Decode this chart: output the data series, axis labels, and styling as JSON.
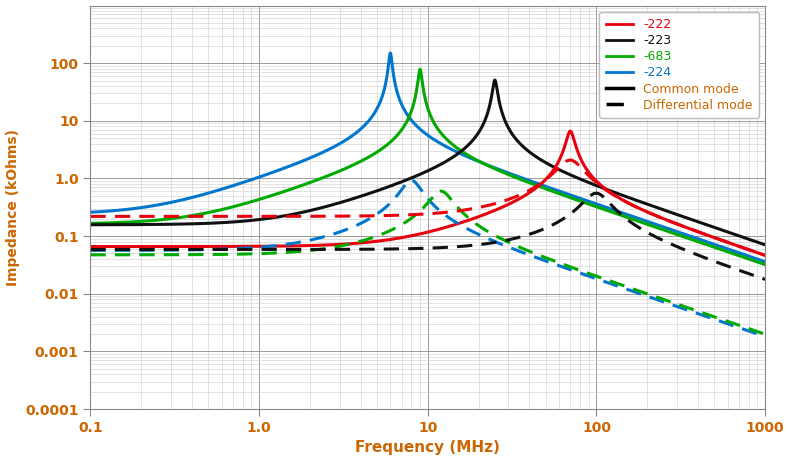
{
  "xlabel": "Frequency (MHz)",
  "ylabel": "Impedance (kOhms)",
  "xlim": [
    0.1,
    1000
  ],
  "ylim": [
    0.0001,
    1000
  ],
  "colors": {
    "222": "#e8000d",
    "223": "#111111",
    "683": "#00aa00",
    "224": "#0077cc"
  },
  "text_color": "#cc6600",
  "grid_major_color": "#999999",
  "grid_minor_color": "#cccccc",
  "bg_color": "#ffffff"
}
